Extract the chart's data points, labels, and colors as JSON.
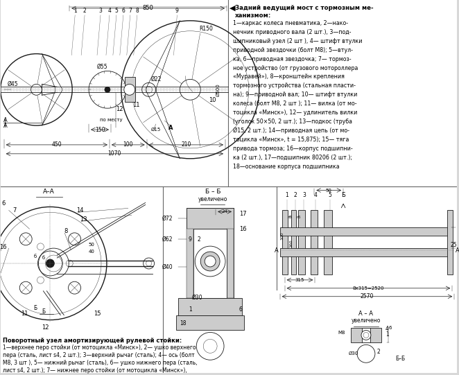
{
  "bg_color": "#d8d8d8",
  "line_color": "#1a1a1a",
  "white": "#ffffff",
  "gray_fill": "#b0b0b0",
  "light_gray": "#cccccc",
  "title_bold": "Задний ведущий мост с тормозным ме-",
  "title_bold2": "ханизмом:",
  "desc_lines": [
    "1—каркас колеса пневматика, 2—нако-",
    "нечник приводного вала (2 шт.), 3—под-",
    "шипниковый узел (2 шт ), 4— штифт втулки",
    "приводной звездочки (болт М8); 5—втул-",
    "ка, 6—приводная звездочка; 7— тормоз-",
    "ное устройство (от грузового мотороллера",
    "«Муравей»), 8—кронштейн крепления",
    "тормозного устройства (стальная пласти-",
    "на); 9—приводной вал; 10— штифт втулки",
    "колеса (болт М8, 2 шт ); 11— вилка (от мо-",
    "тоцикла «Минск»), 12— удлинитель вилки",
    "(уголок 50×50, 2 шт.); 13—подкос (труба",
    "Ø15, 2 шт.); 14—приводная цепь (от мо-",
    "тоцикла «Минск», t = 15,875); 15— тяга",
    "привода тормоза; 16—корпус подшипни-",
    "ка (2 шт.), 17—подшипник 80206 (2 шт.);",
    "18—основание корпуса подшипника"
  ],
  "bot_title": "Поворотный узел амортизирующей рулевой стойки:",
  "bot_lines": [
    "1—верхнее перо стойки (от мотоцикла «Минск»), 2— ушко верхнего",
    "пера (сталь, лист s4, 2 шт.); 3—верхний рычаг (сталь); 4— ось (болт",
    "М8, 3 шт ), 5— нижний рычаг (сталь), 6— ушко нижнего пера (сталь,",
    "лист s4, 2 шт.); 7— нижнее перо стойки (от мотоцикла «Минск»),"
  ]
}
